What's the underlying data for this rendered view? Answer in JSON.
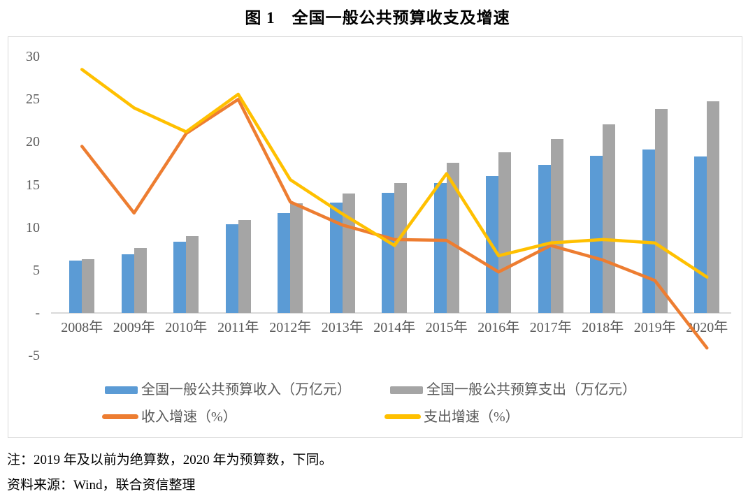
{
  "title": "图 1　全国一般公共预算收支及增速",
  "notes": {
    "note": "注：2019 年及以前为绝算数，2020 年为预算数，下同。",
    "source": "资料来源：Wind，联合资信整理"
  },
  "colors": {
    "revenue_bar": "#5B9BD5",
    "expenditure_bar": "#A5A5A5",
    "revenue_growth_line": "#ED7D31",
    "expenditure_growth_line": "#FFC000",
    "axis_text": "#595959",
    "frame_border": "#D9D9D9"
  },
  "chart_data": {
    "type": "combo (bar + line)",
    "title": "图 1　全国一般公共预算收支及增速",
    "categories": [
      "2008年",
      "2009年",
      "2010年",
      "2011年",
      "2012年",
      "2013年",
      "2014年",
      "2015年",
      "2016年",
      "2017年",
      "2018年",
      "2019年",
      "2020年"
    ],
    "series": [
      {
        "name": "全国一般公共预算收入（万亿元）",
        "type": "bar",
        "color": "#5B9BD5",
        "values": [
          6.1,
          6.9,
          8.3,
          10.4,
          11.7,
          12.9,
          14.1,
          15.2,
          16.0,
          17.3,
          18.4,
          19.1,
          18.3
        ]
      },
      {
        "name": "全国一般公共预算支出（万亿元）",
        "type": "bar",
        "color": "#A5A5A5",
        "values": [
          6.3,
          7.6,
          9.0,
          10.9,
          12.8,
          14.0,
          15.2,
          17.6,
          18.8,
          20.4,
          22.1,
          23.9,
          24.8
        ]
      },
      {
        "name": "收入增速（%）",
        "type": "line",
        "color": "#ED7D31",
        "values": [
          19.5,
          11.7,
          21.0,
          25.0,
          13.0,
          10.3,
          8.6,
          8.5,
          4.8,
          7.9,
          6.2,
          3.8,
          -4.1
        ]
      },
      {
        "name": "支出增速（%）",
        "type": "line",
        "color": "#FFC000",
        "values": [
          28.5,
          24.0,
          21.2,
          25.6,
          15.6,
          11.6,
          7.9,
          16.3,
          6.7,
          8.2,
          8.6,
          8.2,
          4.2
        ]
      }
    ],
    "y_axis": {
      "min": -5,
      "max": 30,
      "ticks": [
        30,
        25,
        20,
        15,
        10,
        5,
        0,
        -5
      ],
      "tick_labels": [
        "30",
        "25",
        "20",
        "15",
        "10",
        "5",
        "-",
        "-5"
      ]
    },
    "grid": false,
    "legend_position": "bottom-inside"
  }
}
